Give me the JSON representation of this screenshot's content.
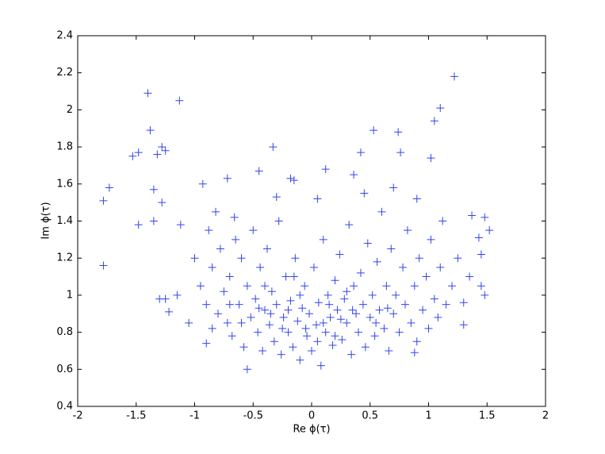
{
  "chart_data": {
    "type": "scatter",
    "xlabel": "Re ϕ(τ)",
    "ylabel": "Im ϕ(τ)",
    "color": "#3344ee",
    "xlim": [
      -2,
      2
    ],
    "ylim": [
      0.4,
      2.4
    ],
    "xticks": [
      -2,
      -1.5,
      -1,
      -0.5,
      0,
      0.5,
      1,
      1.5,
      2
    ],
    "yticks": [
      0.4,
      0.6,
      0.8,
      1,
      1.2,
      1.4,
      1.6,
      1.8,
      2,
      2.2,
      2.4
    ],
    "x": [
      -1.78,
      -1.78,
      -1.73,
      -1.53,
      -1.48,
      -1.48,
      -1.4,
      -1.38,
      -1.35,
      -1.35,
      -1.32,
      -1.28,
      -1.25,
      -1.28,
      -1.13,
      -1.12,
      -1.3,
      -1.25,
      -1.22,
      -1.15,
      -0.93,
      -0.72,
      -0.45,
      -0.33,
      -0.18,
      -0.15,
      0.12,
      0.36,
      0.42,
      0.53,
      0.74,
      0.76,
      1.02,
      1.05,
      1.1,
      1.22,
      1.37,
      1.48,
      1.52,
      1.43,
      1.45,
      1.48,
      1.3,
      1.45,
      0.88,
      -0.55,
      -0.85,
      -0.9,
      -0.95,
      -0.9,
      -0.85,
      -0.8,
      -0.78,
      -0.75,
      -0.72,
      -0.7,
      -0.68,
      -0.65,
      -0.62,
      -0.6,
      -0.58,
      -0.55,
      -0.52,
      -0.5,
      -0.48,
      -0.46,
      -0.44,
      -0.42,
      -0.4,
      -0.38,
      -0.36,
      -0.34,
      -0.32,
      -0.3,
      -0.28,
      -0.26,
      -0.24,
      -0.22,
      -0.2,
      -0.18,
      -0.16,
      -0.14,
      -0.12,
      -0.1,
      -0.08,
      -0.06,
      -0.04,
      -0.02,
      0,
      0.02,
      0.04,
      0.06,
      0.08,
      0.1,
      0.12,
      0.14,
      0.16,
      0.18,
      0.2,
      0.22,
      0.24,
      0.26,
      0.28,
      0.3,
      0.32,
      0.34,
      0.36,
      0.38,
      0.4,
      0.42,
      0.44,
      0.46,
      0.48,
      0.5,
      0.52,
      0.54,
      0.56,
      0.58,
      0.6,
      0.62,
      0.64,
      0.66,
      0.68,
      0.7,
      0.72,
      0.75,
      0.78,
      0.8,
      0.82,
      0.85,
      0.88,
      0.9,
      0.92,
      0.95,
      0.98,
      1.0,
      1.02,
      1.05,
      1.08,
      1.1,
      1.12,
      1.15,
      1.2,
      1.25,
      1.3,
      1.35,
      -1.0,
      -1.05,
      -0.88,
      -0.82,
      -0.66,
      -0.3,
      0.05,
      0.45,
      0.7,
      0.9,
      -0.15,
      -0.05,
      0.15,
      0.25,
      -0.35,
      -0.25,
      0.35,
      0.05,
      -0.45,
      0.55,
      0.65,
      -0.6,
      -0.7,
      -0.1,
      0.1,
      0.2,
      -0.2,
      0.3,
      -0.4
    ],
    "values": [
      1.16,
      1.51,
      1.58,
      1.75,
      1.77,
      1.38,
      2.09,
      1.89,
      1.57,
      1.4,
      1.76,
      1.8,
      1.78,
      1.5,
      2.05,
      1.38,
      0.98,
      0.98,
      0.91,
      1.0,
      1.6,
      1.63,
      1.67,
      1.8,
      1.63,
      1.62,
      1.68,
      1.65,
      1.77,
      1.89,
      1.88,
      1.77,
      1.74,
      1.94,
      2.01,
      2.18,
      1.43,
      1.42,
      1.35,
      1.31,
      1.22,
      1.0,
      0.84,
      1.05,
      0.69,
      0.6,
      0.82,
      0.74,
      1.05,
      0.95,
      1.15,
      0.9,
      1.25,
      1.02,
      0.85,
      1.1,
      0.78,
      1.3,
      0.95,
      1.2,
      0.72,
      1.05,
      0.88,
      1.35,
      0.98,
      0.8,
      1.15,
      0.7,
      0.92,
      1.25,
      0.84,
      1.02,
      0.75,
      0.95,
      1.4,
      0.68,
      0.88,
      1.1,
      0.8,
      0.97,
      0.72,
      1.2,
      0.86,
      0.65,
      0.93,
      1.05,
      0.78,
      0.9,
      0.7,
      1.15,
      0.84,
      0.96,
      0.62,
      1.3,
      0.8,
      1.0,
      0.88,
      0.73,
      1.08,
      0.92,
      1.22,
      0.76,
      0.98,
      0.85,
      1.38,
      0.68,
      1.05,
      0.9,
      0.8,
      1.12,
      0.95,
      0.72,
      1.28,
      0.88,
      1.0,
      0.78,
      1.18,
      0.92,
      1.45,
      0.82,
      1.05,
      0.7,
      1.25,
      0.9,
      1.0,
      0.8,
      1.15,
      0.95,
      1.35,
      0.85,
      1.05,
      0.75,
      1.2,
      0.92,
      1.1,
      0.82,
      1.3,
      0.98,
      0.88,
      1.15,
      1.4,
      0.95,
      1.05,
      1.2,
      0.96,
      1.1,
      1.2,
      0.85,
      1.35,
      1.45,
      1.42,
      1.53,
      1.52,
      1.55,
      1.58,
      1.52,
      1.1,
      0.82,
      0.95,
      0.87,
      0.9,
      0.82,
      0.92,
      0.75,
      0.93,
      0.85,
      0.93,
      0.85,
      0.95,
      1.0,
      0.85,
      0.78,
      0.92,
      1.02,
      1.05
    ]
  }
}
